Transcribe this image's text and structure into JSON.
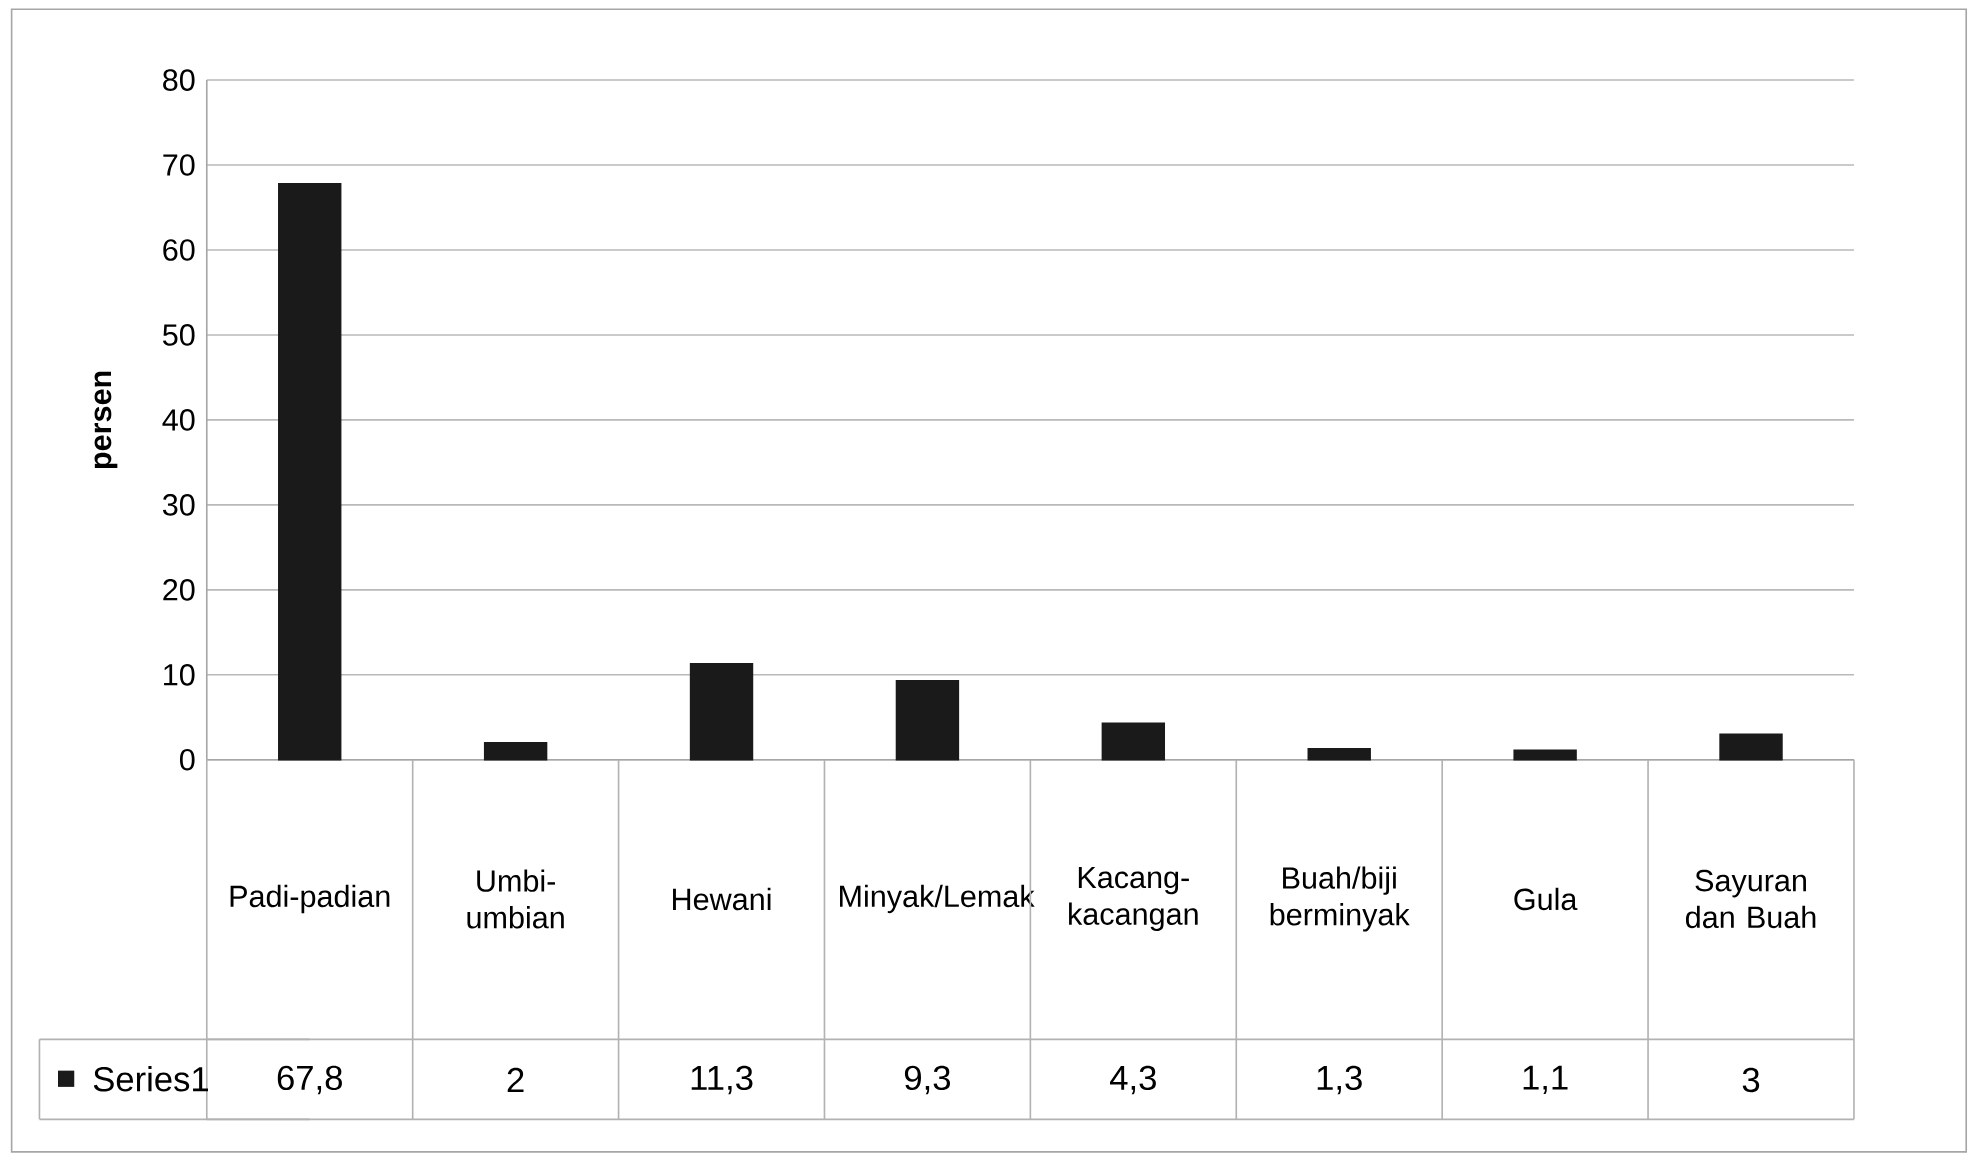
{
  "chart_data": {
    "type": "bar",
    "ylabel": "persen",
    "categories": [
      "Padi-padian",
      "Umbi-umbian",
      "Hewani",
      "Minyak/Lemak",
      "Kacang-kacangan",
      "Buah/biji berminyak",
      "Gula",
      "Sayuran dan Buah"
    ],
    "series": [
      {
        "name": "Series1",
        "color": "#1a1a1a",
        "values": [
          67.8,
          2,
          11.3,
          9.3,
          4.3,
          1.3,
          1.1,
          3
        ],
        "value_labels": [
          "67,8",
          "2",
          "11,3",
          "9,3",
          "4,3",
          "1,3",
          "1,1",
          "3"
        ]
      }
    ],
    "ylim": [
      0,
      80
    ],
    "yticks": [
      0,
      10,
      20,
      30,
      40,
      50,
      60,
      70,
      80
    ],
    "grid": "y",
    "legend": "bottom left"
  }
}
